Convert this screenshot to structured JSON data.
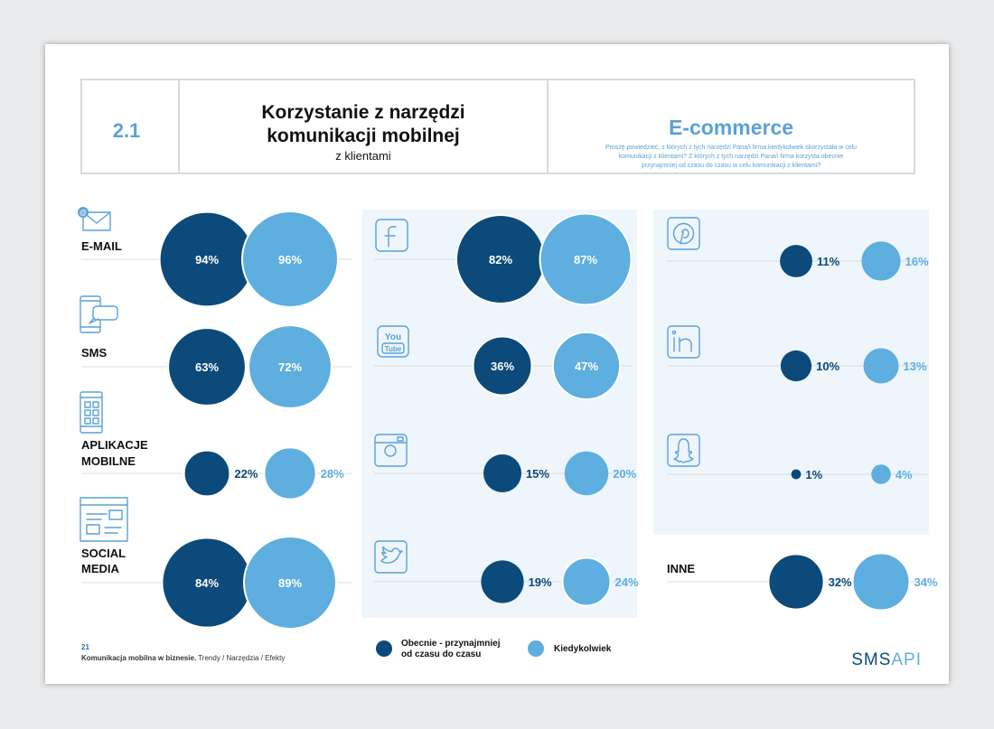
{
  "header": {
    "number": "2.1",
    "title_line1": "Korzystanie z narzędzi",
    "title_line2": "komunikacji mobilnej",
    "subtitle": "z klientami",
    "section": "E-commerce",
    "question_line1": "Proszę powiedzieć, z których z tych narzędzi Pana/i firma kiedykolwiek skorzystała w celu",
    "question_line2": "komunikacji z klientami? Z których z tych narzędzi Pana/i firma korzysta obecnie",
    "question_line3": "przynajmniej od czasu do czasu w celu komunikacji z klientami?"
  },
  "colors": {
    "current": "#0b4a7a",
    "ever": "#5eaee0",
    "panel": "#eef5fb",
    "border": "#d7d9db",
    "accent": "#5aa2d6"
  },
  "chart_data": {
    "type": "bubble",
    "series": [
      {
        "name": "Obecnie - przynajmniej od czasu do czasu",
        "color": "#0b4a7a"
      },
      {
        "name": "Kiedykolwiek",
        "color": "#5eaee0"
      }
    ],
    "groups": [
      {
        "label": "E-MAIL",
        "icon": "email-icon",
        "current": 94,
        "ever": 96
      },
      {
        "label": "SMS",
        "icon": "sms-phone-icon",
        "current": 63,
        "ever": 72
      },
      {
        "label": "APLIKACJE MOBILNE",
        "icon": "mobile-apps-icon",
        "current": 22,
        "ever": 28
      },
      {
        "label": "SOCIAL MEDIA",
        "icon": "social-media-window-icon",
        "current": 84,
        "ever": 89
      },
      {
        "label": "",
        "icon": "facebook-icon",
        "current": 82,
        "ever": 87
      },
      {
        "label": "",
        "icon": "youtube-icon",
        "current": 36,
        "ever": 47
      },
      {
        "label": "",
        "icon": "instagram-icon",
        "current": 15,
        "ever": 20
      },
      {
        "label": "",
        "icon": "twitter-icon",
        "current": 19,
        "ever": 24
      },
      {
        "label": "",
        "icon": "pinterest-icon",
        "current": 11,
        "ever": 16
      },
      {
        "label": "",
        "icon": "linkedin-icon",
        "current": 10,
        "ever": 13
      },
      {
        "label": "",
        "icon": "snapchat-icon",
        "current": 1,
        "ever": 4
      },
      {
        "label": "INNE",
        "icon": "",
        "current": 32,
        "ever": 34
      }
    ]
  },
  "legend": {
    "current_line1": "Obecnie - przynajmniej",
    "current_line2": "od czasu do czasu",
    "ever": "Kiedykolwiek"
  },
  "footer": {
    "page_number": "21",
    "title_bold": "Komunikacja mobilna w biznesie.",
    "title_rest": " Trendy / Narzędzia / Efekty",
    "brand_left": "SMS",
    "brand_right": "API"
  }
}
